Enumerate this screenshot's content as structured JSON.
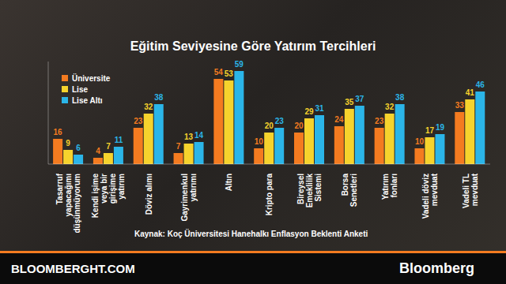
{
  "chart_data": {
    "type": "bar",
    "title": "Eğitim Seviyesine Göre Yatırım Tercihleri",
    "categories": [
      "Tasarruf yapacağımı düşünmüyorum",
      "Kendi işime veya bir girişime yatırım",
      "Döviz alımı",
      "Gayrimenkul yatırımı",
      "Altın",
      "Kripto para",
      "Bireysel Emeklilik Sistemi",
      "Borsa Senetleri",
      "Yatırım fonları",
      "Vadeli döviz mevduat",
      "Vadeli TL mevduat"
    ],
    "series": [
      {
        "name": "Üniversite",
        "color": "#f47b20",
        "values": [
          16,
          4,
          23,
          7,
          54,
          10,
          20,
          24,
          23,
          10,
          33
        ]
      },
      {
        "name": "Lise",
        "color": "#f6d32d",
        "values": [
          9,
          7,
          32,
          13,
          53,
          20,
          29,
          35,
          32,
          17,
          41
        ]
      },
      {
        "name": "Lise Altı",
        "color": "#2bb5e8",
        "values": [
          6,
          11,
          38,
          14,
          59,
          23,
          31,
          37,
          38,
          19,
          46
        ]
      }
    ],
    "ylim": [
      0,
      65
    ],
    "data_labels": true,
    "tick_labels": "x",
    "legend": "top-left",
    "source": "Kaynak: Koç Üniversitesi Hanehalkı Enflasyon Beklenti Anketi",
    "annotations": [
      "BLOOMBERGHT.COM",
      "Bloomberg"
    ]
  }
}
